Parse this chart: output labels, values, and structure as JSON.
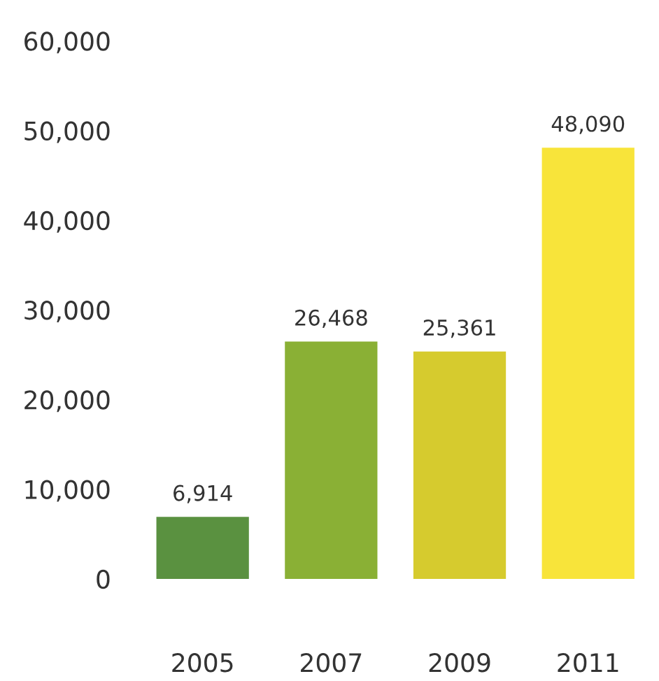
{
  "chart_data": {
    "type": "bar",
    "categories": [
      "2005",
      "2007",
      "2009",
      "2011"
    ],
    "values": [
      6914,
      26468,
      25361,
      48090
    ],
    "colors": [
      "#5a9140",
      "#8ab035",
      "#d6cb2e",
      "#f8e43a"
    ],
    "value_labels": [
      "6,914",
      "26,468",
      "25,361",
      "48,090"
    ],
    "ylim": [
      0,
      60000
    ],
    "yticks": [
      {
        "value": 0,
        "label": "0"
      },
      {
        "value": 10000,
        "label": "10,000"
      },
      {
        "value": 20000,
        "label": "20,000"
      },
      {
        "value": 30000,
        "label": "30,000"
      },
      {
        "value": 40000,
        "label": "40,000"
      },
      {
        "value": 50000,
        "label": "50,000"
      },
      {
        "value": 60000,
        "label": "60,000"
      }
    ],
    "grid": false,
    "legend": false
  }
}
